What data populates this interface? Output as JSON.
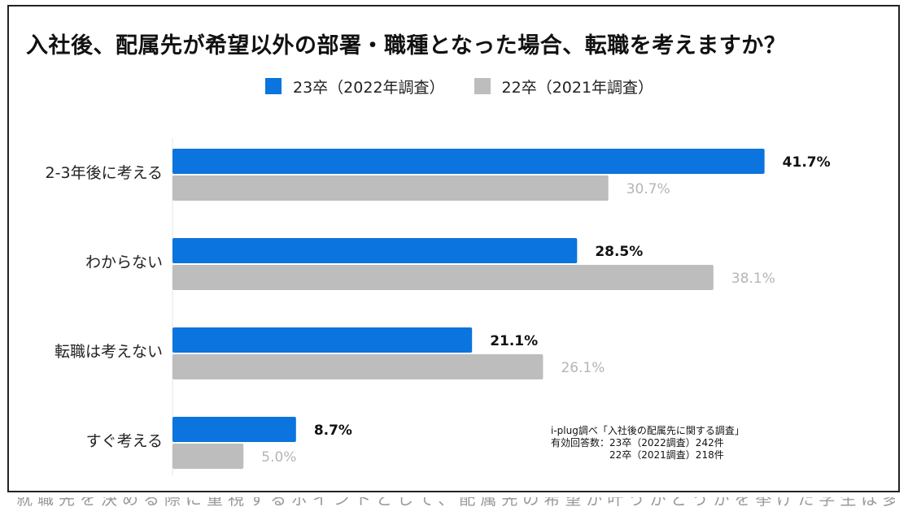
{
  "chart_data": {
    "type": "bar",
    "orientation": "horizontal",
    "title": "入社後、配属先が希望以外の部署・職種となった場合、転職を考えますか？",
    "categories": [
      "2-3年後に考える",
      "わからない",
      "転職は考えない",
      "すぐ考える"
    ],
    "series": [
      {
        "name": "23卒（2022年調査）",
        "color": "#0b74de",
        "label_color": "#111111",
        "values": [
          41.7,
          28.5,
          21.1,
          8.7
        ],
        "labels": [
          "41.7%",
          "28.5%",
          "21.1%",
          "8.7%"
        ]
      },
      {
        "name": "22卒（2021年調査）",
        "color": "#bdbdbd",
        "label_color": "#b5b5b5",
        "values": [
          30.7,
          38.1,
          26.1,
          5.0
        ],
        "labels": [
          "30.7%",
          "38.1%",
          "26.1%",
          "5.0%"
        ]
      }
    ],
    "xlim": [
      0,
      43
    ],
    "xlabel": "",
    "ylabel": "",
    "legend": "top-center",
    "grid": false
  },
  "source_note": {
    "line1": "i-plug調べ「入社後の配属先に関する調査」",
    "line2": "有効回答数：23卒（2022調査）242件",
    "line3": "　　　　　　22卒（2021調査）218件"
  },
  "footer_cutoff_text": "就職先を決める際に重視するポイントとして、配属先の希望が叶うかどうかを挙げた学生は多い"
}
